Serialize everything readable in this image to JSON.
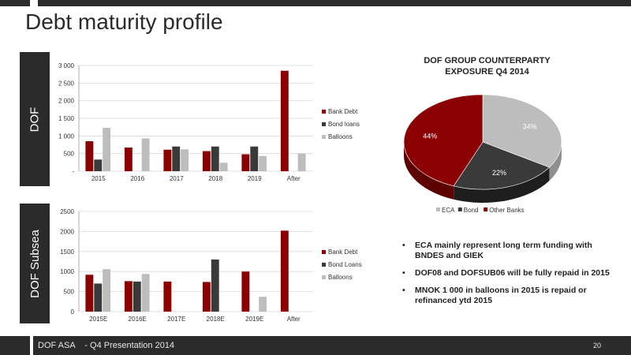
{
  "slide": {
    "title": "Debt maturity profile",
    "side_labels": [
      "DOF",
      "DOF Subsea"
    ],
    "pie_title_line1": "DOF GROUP COUNTERPARTY",
    "pie_title_line2": "EXPOSURE Q4 2014",
    "bullets": [
      "ECA mainly represent  long term funding with BNDES and GIEK",
      "DOF08 and DOFSUB06 will be fully repaid in 2015",
      "MNOK 1 000 in balloons in 2015 is repaid or refinanced ytd 2015"
    ],
    "footer": {
      "company": "DOF ASA",
      "presentation": "- Q4 Presentation 2014",
      "page": "20"
    }
  },
  "colors": {
    "bank_debt": "#8b0000",
    "bond_loans": "#3a3a3a",
    "balloons": "#bdbdbd",
    "dark": "#2b2b2b"
  },
  "chart_data": [
    {
      "type": "bar",
      "categories": [
        "2015",
        "2016",
        "2017",
        "2018",
        "2019",
        "After"
      ],
      "series": [
        {
          "name": "Bank Debt",
          "values": [
            850,
            670,
            610,
            570,
            480,
            2850
          ]
        },
        {
          "name": "Bond loans",
          "values": [
            330,
            0,
            700,
            700,
            700,
            0
          ]
        },
        {
          "name": "Balloons",
          "values": [
            1230,
            930,
            620,
            240,
            430,
            500
          ]
        }
      ],
      "ylim": [
        0,
        3000
      ],
      "yticks": [
        0,
        500,
        1000,
        1500,
        2000,
        2500,
        3000
      ],
      "ytick_labels": [
        "-",
        "500",
        "1 000",
        "1 500",
        "2 000",
        "2 500",
        "3 000"
      ],
      "legend": "right",
      "grid": true
    },
    {
      "type": "bar",
      "categories": [
        "2015E",
        "2016E",
        "2017E",
        "2018E",
        "2019E",
        "After"
      ],
      "series": [
        {
          "name": "Bank Debt",
          "values": [
            920,
            760,
            750,
            740,
            1000,
            2020
          ]
        },
        {
          "name": "Bond Loans",
          "values": [
            700,
            750,
            0,
            1300,
            0,
            0
          ]
        },
        {
          "name": "Balloons",
          "values": [
            1060,
            940,
            0,
            0,
            370,
            0
          ]
        }
      ],
      "ylim": [
        0,
        2500
      ],
      "yticks": [
        0,
        500,
        1000,
        1500,
        2000,
        2500
      ],
      "ytick_labels": [
        "0",
        "500",
        "1000",
        "1500",
        "2000",
        "2500"
      ],
      "legend": "right",
      "grid": true
    },
    {
      "type": "pie",
      "categories": [
        "ECA",
        "Bond",
        "Other Banks"
      ],
      "values": [
        34,
        22,
        44
      ],
      "labels": [
        "34%",
        "22%",
        "44%"
      ],
      "legend": "bottom"
    }
  ]
}
